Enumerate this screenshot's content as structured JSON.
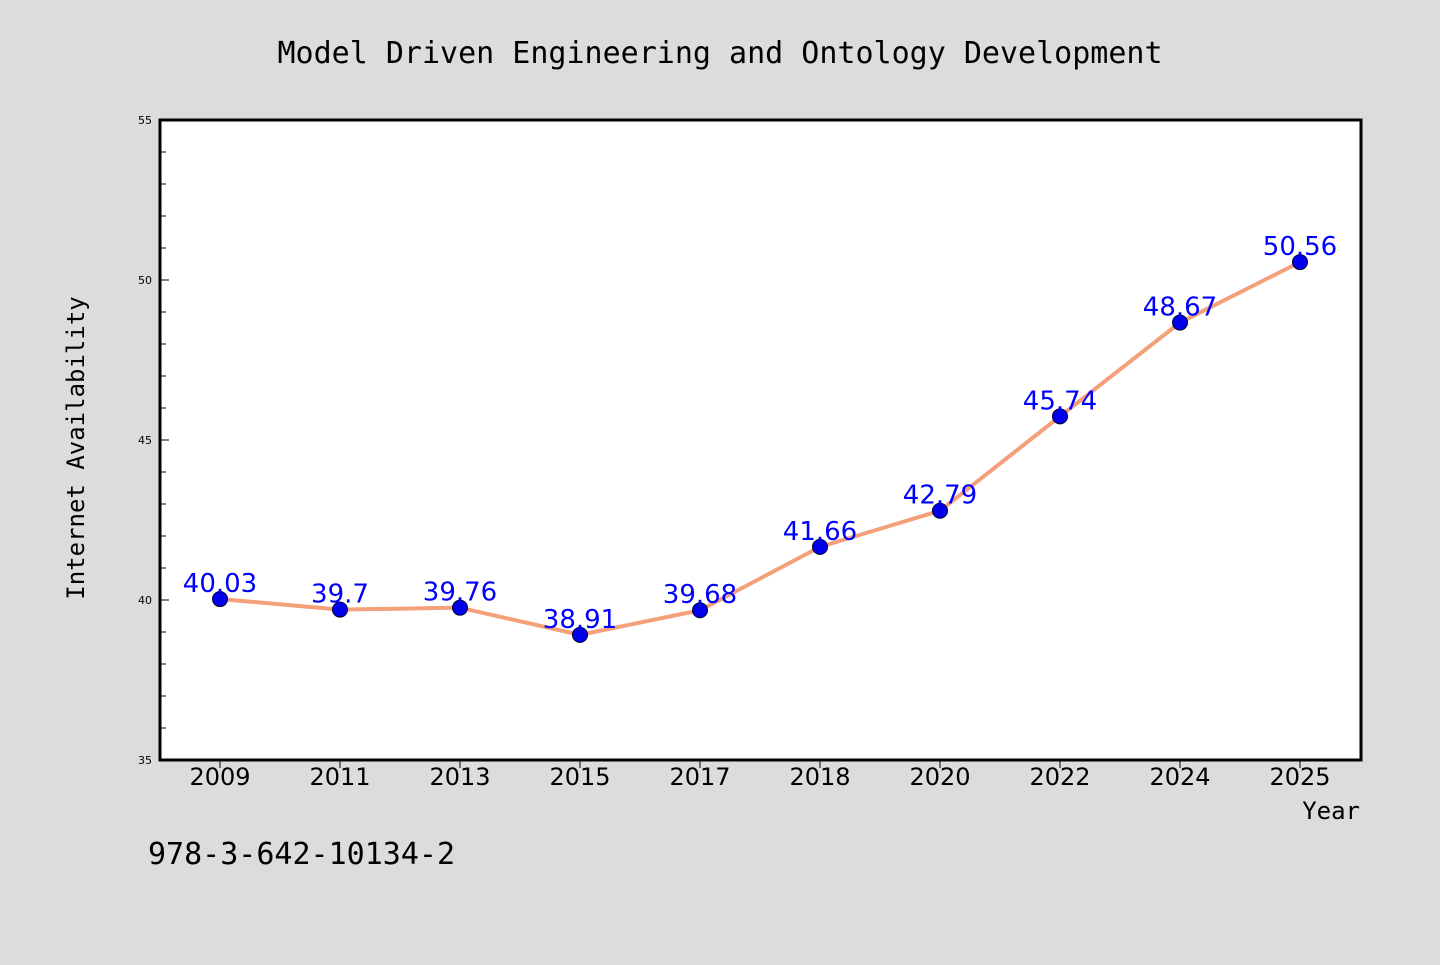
{
  "chart_data": {
    "type": "line",
    "title": "Model Driven Engineering and Ontology Development",
    "xlabel": "Year",
    "ylabel": "Internet Availability",
    "categories": [
      "2009",
      "2011",
      "2013",
      "2015",
      "2017",
      "2018",
      "2020",
      "2022",
      "2024",
      "2025"
    ],
    "series": [
      {
        "values": [
          40.03,
          39.7,
          39.76,
          38.91,
          39.68,
          41.66,
          42.79,
          45.74,
          48.67,
          50.56
        ],
        "data_labels": [
          "40.03",
          "39.7",
          "39.76",
          "38.91",
          "39.68",
          "41.66",
          "42.79",
          "45.74",
          "48.67",
          "50.56"
        ],
        "line_color": "#f4a07a",
        "marker_color": "#0000ee"
      }
    ],
    "ylim": [
      35,
      55
    ],
    "yticks": [
      35,
      40,
      45,
      50,
      55
    ],
    "ytick_labels": [
      "35",
      "40",
      "45",
      "50",
      "55"
    ],
    "grid": false,
    "legend": "none",
    "label_color": "#0000ff"
  },
  "footer": {
    "isbn": "978-3-642-10134-2"
  },
  "colors": {
    "background": "#dcdcdc",
    "plot_background": "#ffffff"
  }
}
